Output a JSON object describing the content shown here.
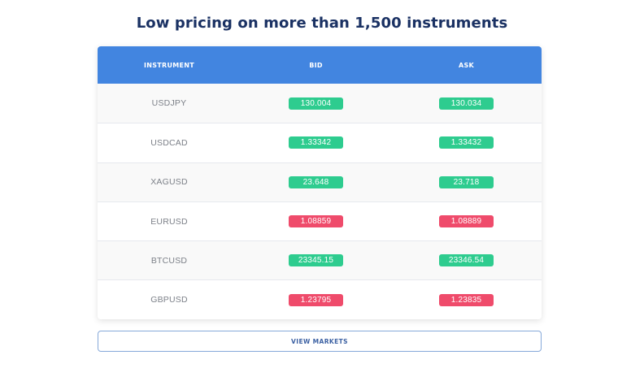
{
  "heading": "Low pricing on more than 1,500 instruments",
  "table": {
    "headers": {
      "instrument": "INSTRUMENT",
      "bid": "BID",
      "ask": "ASK"
    },
    "rows": [
      {
        "instrument": "USDJPY",
        "bid": "130.004",
        "ask": "130.034",
        "trend": "up"
      },
      {
        "instrument": "USDCAD",
        "bid": "1.33342",
        "ask": "1.33432",
        "trend": "up"
      },
      {
        "instrument": "XAGUSD",
        "bid": "23.648",
        "ask": "23.718",
        "trend": "up"
      },
      {
        "instrument": "EURUSD",
        "bid": "1.08859",
        "ask": "1.08889",
        "trend": "down"
      },
      {
        "instrument": "BTCUSD",
        "bid": "23345.15",
        "ask": "23346.54",
        "trend": "up"
      },
      {
        "instrument": "GBPUSD",
        "bid": "1.23795",
        "ask": "1.23835",
        "trend": "down"
      }
    ]
  },
  "button": {
    "label": "VIEW MARKETS"
  },
  "colors": {
    "header_bg": "#4285e0",
    "up": "#2ecc8f",
    "down": "#ef4b6b",
    "heading": "#1a3163"
  }
}
